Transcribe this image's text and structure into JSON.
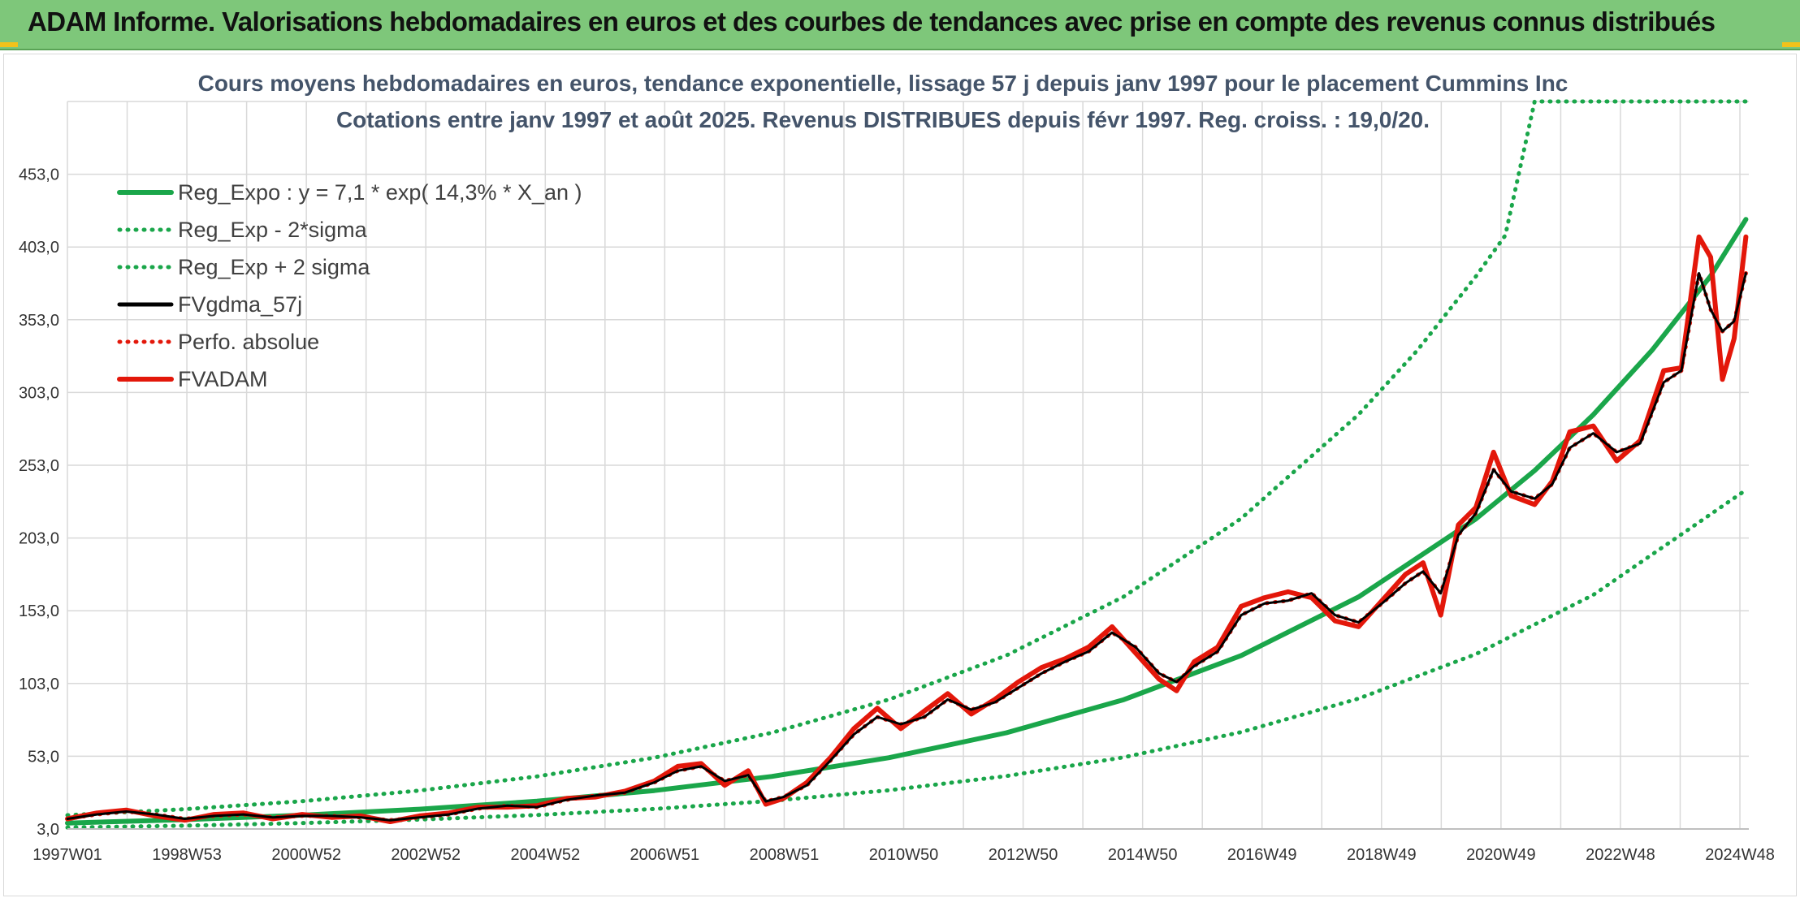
{
  "header": {
    "title": "ADAM Informe. Valorisations hebdomadaires en euros et des courbes de tendances avec prise en compte des revenus connus distribués"
  },
  "chart_data": {
    "type": "line",
    "title": "Cours moyens hebdomadaires en euros, tendance exponentielle, lissage 57 j depuis janv 1997 pour le placement Cummins Inc",
    "subtitle": "Cotations entre janv 1997 et août 2025. Revenus DISTRIBUES depuis févr 1997. Reg. croiss. : 19,0/20.",
    "xlabel": "",
    "ylabel": "",
    "x_ticks": [
      "1997W01",
      "1998W53",
      "2000W52",
      "2002W52",
      "2004W52",
      "2006W51",
      "2008W51",
      "2010W50",
      "2012W50",
      "2014W50",
      "2016W49",
      "2018W49",
      "2020W49",
      "2022W48",
      "2024W48"
    ],
    "y_ticks": [
      "3,0",
      "53,0",
      "103,0",
      "153,0",
      "203,0",
      "253,0",
      "303,0",
      "353,0",
      "403,0",
      "453,0"
    ],
    "ylim": [
      3,
      503
    ],
    "xlim": [
      1997.0,
      2025.65
    ],
    "grid": true,
    "legend_position": "top-left",
    "colors": {
      "reg_expo": "#1aa64a",
      "sigma": "#1aa64a",
      "fvgdma": "#000000",
      "perfo": "#e3170a",
      "fvadam": "#e3170a"
    },
    "series": [
      {
        "name": "Reg_Expo : y = 7,1 * exp( 14,3% *  X_an )",
        "style": "solid-thick",
        "color": "#1aa64a",
        "x": [
          1997.0,
          1999.0,
          2001.0,
          2003.0,
          2005.0,
          2007.0,
          2009.0,
          2011.0,
          2013.0,
          2015.0,
          2017.0,
          2019.0,
          2021.0,
          2022.0,
          2023.0,
          2024.0,
          2025.0,
          2025.6
        ],
        "y": [
          7.1,
          9.4,
          12.5,
          16.6,
          22.1,
          29.4,
          39.1,
          52.0,
          69.1,
          91.9,
          122.2,
          162.5,
          216.1,
          249.3,
          287.7,
          332.0,
          383.1,
          422.0
        ]
      },
      {
        "name": "Reg_Exp - 2*sigma",
        "style": "dotted",
        "color": "#1aa64a",
        "x": [
          1997.0,
          1999.0,
          2001.0,
          2003.0,
          2005.0,
          2007.0,
          2009.0,
          2011.0,
          2013.0,
          2015.0,
          2017.0,
          2019.0,
          2021.0,
          2023.0,
          2025.6
        ],
        "y": [
          4.0,
          5.3,
          7.1,
          9.5,
          12.6,
          16.8,
          22.3,
          29.6,
          39.4,
          52.3,
          69.6,
          92.6,
          123.2,
          163.9,
          236.0
        ]
      },
      {
        "name": "Reg_Exp + 2 sigma",
        "style": "dotted",
        "color": "#1aa64a",
        "x": [
          1997.0,
          1999.0,
          2001.0,
          2003.0,
          2005.0,
          2007.0,
          2009.0,
          2011.0,
          2013.0,
          2015.0,
          2017.0,
          2019.0,
          2020.0,
          2021.0,
          2021.5,
          2022.0,
          2025.6
        ],
        "y": [
          12.5,
          16.6,
          22.1,
          29.4,
          39.1,
          52.0,
          69.1,
          92.0,
          122.3,
          162.7,
          216.4,
          287.8,
          331.9,
          382.8,
          411.0,
          503.0,
          503.0
        ]
      },
      {
        "name": "FVgdma_57j",
        "style": "solid",
        "color": "#000000",
        "x": [
          1997.0,
          1997.5,
          1998.0,
          1998.5,
          1999.0,
          1999.5,
          2000.0,
          2000.5,
          2001.0,
          2001.5,
          2002.0,
          2002.5,
          2003.0,
          2003.5,
          2004.0,
          2004.5,
          2005.0,
          2005.5,
          2006.0,
          2006.5,
          2007.0,
          2007.4,
          2007.8,
          2008.2,
          2008.6,
          2008.9,
          2009.2,
          2009.6,
          2010.0,
          2010.4,
          2010.8,
          2011.2,
          2011.6,
          2012.0,
          2012.4,
          2012.8,
          2013.2,
          2013.6,
          2014.0,
          2014.4,
          2014.8,
          2015.2,
          2015.6,
          2015.9,
          2016.2,
          2016.6,
          2017.0,
          2017.4,
          2017.8,
          2018.2,
          2018.6,
          2019.0,
          2019.4,
          2019.8,
          2020.1,
          2020.4,
          2020.7,
          2021.0,
          2021.3,
          2021.6,
          2022.0,
          2022.3,
          2022.6,
          2023.0,
          2023.4,
          2023.8,
          2024.2,
          2024.5,
          2024.8,
          2025.0,
          2025.2,
          2025.4,
          2025.6
        ],
        "y": [
          10,
          13,
          15,
          13,
          10,
          12,
          13,
          11,
          12,
          12,
          11,
          9,
          11,
          13,
          17,
          19,
          18,
          23,
          26,
          28,
          35,
          43,
          46,
          36,
          40,
          22,
          25,
          33,
          50,
          68,
          80,
          75,
          80,
          92,
          85,
          90,
          100,
          110,
          118,
          125,
          138,
          128,
          110,
          104,
          115,
          125,
          150,
          158,
          160,
          165,
          150,
          145,
          158,
          172,
          180,
          165,
          205,
          220,
          250,
          235,
          230,
          240,
          265,
          275,
          262,
          268,
          310,
          318,
          385,
          360,
          345,
          352,
          385
        ]
      },
      {
        "name": "Perfo. absolue",
        "style": "dotted",
        "color": "#e3170a",
        "x": [
          1997.0,
          1997.5,
          1998.0,
          1998.5,
          1999.0,
          1999.5,
          2000.0,
          2000.5,
          2001.0,
          2001.5,
          2002.0,
          2002.5,
          2003.0,
          2003.5,
          2004.0,
          2004.5,
          2005.0,
          2005.5,
          2006.0,
          2006.5,
          2007.0,
          2007.4,
          2007.8,
          2008.2,
          2008.6,
          2008.9,
          2009.2,
          2009.6,
          2010.0,
          2010.4,
          2010.8,
          2011.2,
          2011.6,
          2012.0,
          2012.4,
          2012.8,
          2013.2,
          2013.6,
          2014.0,
          2014.4,
          2014.8,
          2015.2,
          2015.6,
          2015.9,
          2016.2,
          2016.6,
          2017.0,
          2017.4,
          2017.8,
          2018.2,
          2018.6,
          2019.0,
          2019.4,
          2019.8,
          2020.1,
          2020.4,
          2020.7,
          2021.0,
          2021.3,
          2021.6,
          2022.0,
          2022.3,
          2022.6,
          2023.0,
          2023.4,
          2023.8,
          2024.2,
          2024.5,
          2024.8,
          2025.0,
          2025.2,
          2025.4,
          2025.6
        ],
        "y": [
          10,
          13,
          15,
          13,
          10,
          12,
          13,
          11,
          12,
          12,
          11,
          9,
          11,
          13,
          17,
          19,
          18,
          23,
          26,
          28,
          35,
          43,
          46,
          36,
          40,
          22,
          25,
          33,
          50,
          68,
          80,
          75,
          80,
          92,
          85,
          90,
          100,
          110,
          118,
          125,
          138,
          128,
          110,
          104,
          115,
          125,
          150,
          158,
          160,
          165,
          150,
          145,
          158,
          172,
          180,
          165,
          205,
          220,
          250,
          235,
          230,
          240,
          265,
          275,
          262,
          268,
          310,
          318,
          385,
          360,
          345,
          352,
          385
        ]
      },
      {
        "name": "FVADAM",
        "style": "solid-thick",
        "color": "#e3170a",
        "x": [
          1997.0,
          1997.5,
          1998.0,
          1998.5,
          1999.0,
          1999.5,
          2000.0,
          2000.5,
          2001.0,
          2001.5,
          2002.0,
          2002.5,
          2003.0,
          2003.5,
          2004.0,
          2004.5,
          2005.0,
          2005.5,
          2006.0,
          2006.5,
          2007.0,
          2007.4,
          2007.8,
          2008.2,
          2008.6,
          2008.9,
          2009.2,
          2009.6,
          2010.0,
          2010.4,
          2010.8,
          2011.2,
          2011.6,
          2012.0,
          2012.4,
          2012.8,
          2013.2,
          2013.6,
          2014.0,
          2014.4,
          2014.8,
          2015.2,
          2015.6,
          2015.9,
          2016.2,
          2016.6,
          2017.0,
          2017.4,
          2017.8,
          2018.2,
          2018.6,
          2019.0,
          2019.4,
          2019.8,
          2020.1,
          2020.4,
          2020.7,
          2021.0,
          2021.3,
          2021.6,
          2022.0,
          2022.3,
          2022.6,
          2023.0,
          2023.4,
          2023.8,
          2024.2,
          2024.5,
          2024.8,
          2025.0,
          2025.2,
          2025.4,
          2025.6
        ],
        "y": [
          10,
          14,
          16,
          12,
          9,
          13,
          14,
          10,
          13,
          11,
          12,
          8,
          12,
          14,
          18,
          18,
          19,
          24,
          25,
          29,
          36,
          46,
          48,
          33,
          43,
          20,
          24,
          35,
          52,
          72,
          86,
          72,
          84,
          96,
          82,
          92,
          104,
          114,
          120,
          128,
          142,
          124,
          106,
          98,
          118,
          128,
          156,
          162,
          166,
          162,
          146,
          142,
          160,
          178,
          186,
          150,
          212,
          224,
          262,
          232,
          226,
          242,
          276,
          280,
          256,
          270,
          318,
          320,
          410,
          396,
          312,
          340,
          410
        ]
      }
    ]
  }
}
